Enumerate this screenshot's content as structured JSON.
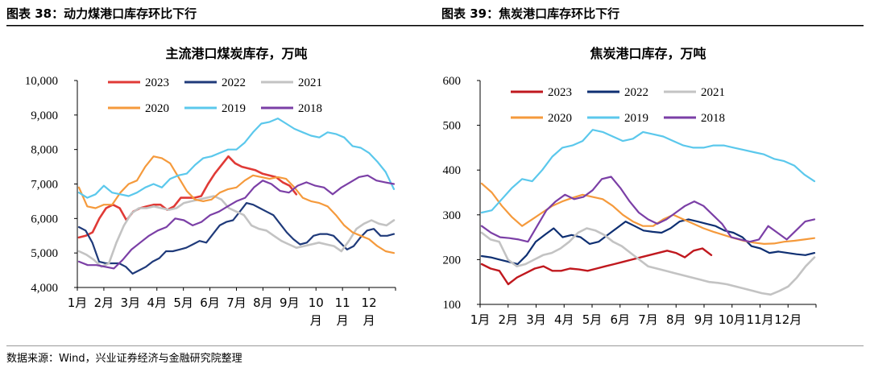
{
  "figures": {
    "left_title": "图表 38：动力煤港口库存环比下行",
    "right_title": "图表 39：焦炭港口库存环比下行"
  },
  "source": "数据来源：Wind，兴业证券经济与金融研究院整理",
  "chart_data": [
    {
      "type": "line",
      "title": "主流港口煤炭库存，万吨",
      "xlabel": "",
      "ylabel": "",
      "ylim": [
        4000,
        10000
      ],
      "yticks": [
        "4,000",
        "5,000",
        "6,000",
        "7,000",
        "8,000",
        "9,000",
        "10,000"
      ],
      "xticks": [
        [
          "1月"
        ],
        [
          "2月"
        ],
        [
          "3月"
        ],
        [
          "4月"
        ],
        [
          "5月"
        ],
        [
          "6月"
        ],
        [
          "7月"
        ],
        [
          "8月"
        ],
        [
          "9月"
        ],
        [
          "10",
          "月"
        ],
        [
          "11",
          "月"
        ],
        [
          "12",
          "月"
        ]
      ],
      "legend": "top",
      "grid": false,
      "series": [
        {
          "name": "2023",
          "color": "#e03a36",
          "width": 2.6,
          "values": [
            5450,
            5500,
            5600,
            6000,
            6300,
            6400,
            6300,
            5950,
            6200,
            6300,
            6350,
            6400,
            6400,
            6250,
            6350,
            6600,
            6600,
            6600,
            6650,
            7000,
            7300,
            7550,
            7800,
            7600,
            7500,
            7450,
            7400,
            7300,
            7250,
            7200,
            7050,
            6950,
            6700
          ]
        },
        {
          "name": "2022",
          "color": "#1f3a7a",
          "width": 2.2,
          "values": [
            5750,
            5650,
            5300,
            4750,
            4700,
            4700,
            4700,
            4600,
            4400,
            4500,
            4600,
            4750,
            4850,
            5050,
            5050,
            5100,
            5150,
            5250,
            5350,
            5300,
            5550,
            5800,
            5900,
            5950,
            6200,
            6450,
            6400,
            6300,
            6200,
            6100,
            5850,
            5600,
            5400,
            5250,
            5300,
            5500,
            5550,
            5550,
            5500,
            5300,
            5100,
            5200,
            5450,
            5650,
            5700,
            5500,
            5500,
            5550
          ]
        },
        {
          "name": "2021",
          "color": "#c3c3c3",
          "width": 2.6,
          "values": [
            5050,
            4950,
            4800,
            4600,
            4700,
            5300,
            5800,
            6150,
            6300,
            6300,
            6350,
            6300,
            6250,
            6300,
            6450,
            6500,
            6550,
            6600,
            6650,
            6550,
            6300,
            6200,
            6100,
            5800,
            5700,
            5650,
            5500,
            5350,
            5250,
            5150,
            5200,
            5250,
            5300,
            5250,
            5200,
            5050,
            5350,
            5700,
            5850,
            5950,
            5850,
            5800,
            5950
          ]
        },
        {
          "name": "2020",
          "color": "#f59a3c",
          "width": 2.2,
          "values": [
            6900,
            6350,
            6300,
            6400,
            6400,
            6750,
            7000,
            7100,
            7500,
            7800,
            7750,
            7600,
            7200,
            6800,
            6550,
            6500,
            6550,
            6750,
            6850,
            6900,
            7100,
            7250,
            7200,
            7150,
            7200,
            7150,
            6900,
            6600,
            6500,
            6450,
            6350,
            6100,
            5800,
            5600,
            5500,
            5400,
            5200,
            5050,
            5000
          ]
        },
        {
          "name": "2019",
          "color": "#5bc8ec",
          "width": 2.2,
          "values": [
            6750,
            6600,
            6700,
            6950,
            6750,
            6700,
            6650,
            6750,
            6900,
            7000,
            6900,
            7150,
            7250,
            7300,
            7550,
            7750,
            7800,
            7900,
            8000,
            8000,
            8200,
            8500,
            8750,
            8800,
            8900,
            8750,
            8600,
            8500,
            8400,
            8350,
            8500,
            8450,
            8350,
            8100,
            8050,
            7900,
            7650,
            7350,
            6850
          ]
        },
        {
          "name": "2018",
          "color": "#7b3fa6",
          "width": 2.2,
          "values": [
            4750,
            4650,
            4650,
            4600,
            4550,
            4800,
            5100,
            5300,
            5500,
            5650,
            5750,
            6000,
            5950,
            5800,
            5900,
            6100,
            6200,
            6350,
            6500,
            6600,
            6900,
            7100,
            7000,
            6800,
            6750,
            6950,
            7050,
            6950,
            6900,
            6700,
            6900,
            7050,
            7200,
            7250,
            7100,
            7050,
            7000
          ]
        }
      ]
    },
    {
      "type": "line",
      "title": "焦炭港口库存，万吨",
      "xlabel": "",
      "ylabel": "",
      "ylim": [
        100,
        600
      ],
      "yticks": [
        "100",
        "200",
        "300",
        "400",
        "500",
        "600"
      ],
      "xticks": [
        [
          "1月"
        ],
        [
          "2月"
        ],
        [
          "3月"
        ],
        [
          "4月"
        ],
        [
          "5月"
        ],
        [
          "6月"
        ],
        [
          "7月"
        ],
        [
          "8月"
        ],
        [
          "9月"
        ],
        [
          "10月"
        ],
        [
          "11月"
        ],
        [
          "12月"
        ]
      ],
      "legend": "top",
      "grid": false,
      "series": [
        {
          "name": "2023",
          "color": "#c0181e",
          "width": 2.4,
          "values": [
            190,
            180,
            175,
            145,
            160,
            170,
            180,
            185,
            175,
            175,
            180,
            178,
            175,
            180,
            185,
            190,
            195,
            200,
            205,
            210,
            215,
            220,
            215,
            205,
            220,
            225,
            210
          ]
        },
        {
          "name": "2022",
          "color": "#0e2f72",
          "width": 2.2,
          "values": [
            208,
            205,
            200,
            195,
            190,
            210,
            240,
            255,
            270,
            250,
            255,
            250,
            235,
            240,
            255,
            270,
            285,
            275,
            265,
            262,
            260,
            270,
            285,
            290,
            285,
            280,
            275,
            265,
            260,
            250,
            230,
            225,
            215,
            218,
            215,
            212,
            210,
            215
          ]
        },
        {
          "name": "2021",
          "color": "#c3c3c3",
          "width": 2.6,
          "values": [
            260,
            245,
            240,
            200,
            185,
            190,
            200,
            210,
            215,
            225,
            240,
            260,
            270,
            265,
            255,
            240,
            230,
            215,
            200,
            185,
            180,
            175,
            170,
            165,
            160,
            155,
            150,
            148,
            145,
            140,
            135,
            130,
            125,
            122,
            130,
            140,
            160,
            185,
            205
          ]
        },
        {
          "name": "2020",
          "color": "#f59a3c",
          "width": 2.2,
          "values": [
            370,
            350,
            320,
            295,
            275,
            290,
            305,
            320,
            330,
            338,
            345,
            340,
            335,
            320,
            300,
            285,
            275,
            275,
            290,
            300,
            290,
            280,
            270,
            262,
            255,
            248,
            242,
            238,
            235,
            236,
            240,
            242,
            245,
            248
          ]
        },
        {
          "name": "2019",
          "color": "#5bc8ec",
          "width": 2.2,
          "values": [
            305,
            310,
            335,
            360,
            380,
            375,
            400,
            430,
            450,
            455,
            465,
            490,
            485,
            475,
            465,
            470,
            485,
            480,
            475,
            465,
            455,
            450,
            450,
            455,
            455,
            450,
            445,
            440,
            435,
            425,
            420,
            410,
            390,
            375
          ]
        },
        {
          "name": "2018",
          "color": "#7b3fa6",
          "width": 2.2,
          "values": [
            275,
            260,
            250,
            248,
            245,
            240,
            275,
            310,
            330,
            345,
            335,
            340,
            355,
            380,
            385,
            360,
            330,
            305,
            290,
            280,
            290,
            305,
            320,
            330,
            320,
            300,
            280,
            250,
            245,
            240,
            245,
            275,
            260,
            245,
            265,
            285,
            290
          ]
        }
      ]
    }
  ]
}
